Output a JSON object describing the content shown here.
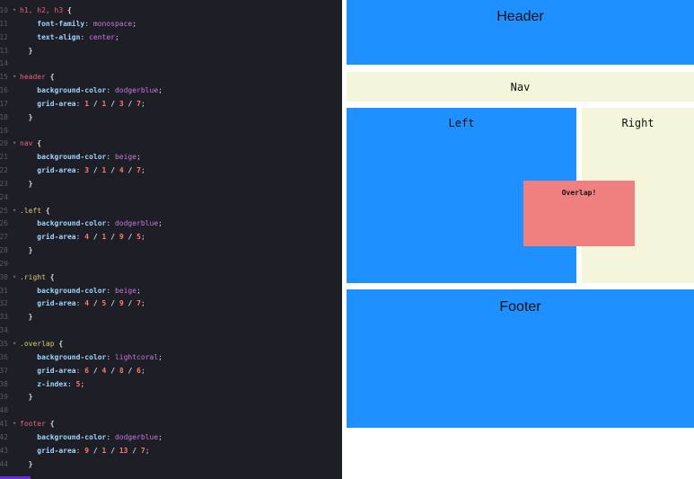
{
  "editor": {
    "lines": [
      {
        "n": "10",
        "fold": true,
        "tokens": [
          [
            "sel",
            "h1, h2, h3"
          ],
          [
            "plain",
            " "
          ],
          [
            "brace",
            "{"
          ]
        ]
      },
      {
        "n": "11",
        "tokens": [
          [
            "plain",
            "    "
          ],
          [
            "prop",
            "font-family"
          ],
          [
            "colon",
            ": "
          ],
          [
            "val",
            "monospace"
          ],
          [
            "semi",
            ";"
          ]
        ]
      },
      {
        "n": "12",
        "tokens": [
          [
            "plain",
            "    "
          ],
          [
            "prop",
            "text-align"
          ],
          [
            "colon",
            ": "
          ],
          [
            "val",
            "center"
          ],
          [
            "semi",
            ";"
          ]
        ]
      },
      {
        "n": "13",
        "tokens": [
          [
            "plain",
            "  "
          ],
          [
            "brace",
            "}"
          ]
        ]
      },
      {
        "n": "14",
        "tokens": []
      },
      {
        "n": "15",
        "fold": true,
        "tokens": [
          [
            "sel",
            "header"
          ],
          [
            "plain",
            " "
          ],
          [
            "brace",
            "{"
          ]
        ]
      },
      {
        "n": "16",
        "tokens": [
          [
            "plain",
            "    "
          ],
          [
            "prop",
            "background-color"
          ],
          [
            "colon",
            ": "
          ],
          [
            "val",
            "dodgerblue"
          ],
          [
            "semi",
            ";"
          ]
        ]
      },
      {
        "n": "17",
        "tokens": [
          [
            "plain",
            "    "
          ],
          [
            "prop",
            "grid-area"
          ],
          [
            "colon",
            ": "
          ],
          [
            "num",
            "1"
          ],
          [
            "slash",
            " / "
          ],
          [
            "num",
            "1"
          ],
          [
            "slash",
            " / "
          ],
          [
            "num",
            "3"
          ],
          [
            "slash",
            " / "
          ],
          [
            "num",
            "7"
          ],
          [
            "semi",
            ";"
          ]
        ]
      },
      {
        "n": "18",
        "tokens": [
          [
            "plain",
            "  "
          ],
          [
            "brace",
            "}"
          ]
        ]
      },
      {
        "n": "19",
        "tokens": []
      },
      {
        "n": "20",
        "fold": true,
        "tokens": [
          [
            "sel",
            "nav"
          ],
          [
            "plain",
            " "
          ],
          [
            "brace",
            "{"
          ]
        ]
      },
      {
        "n": "21",
        "tokens": [
          [
            "plain",
            "    "
          ],
          [
            "prop",
            "background-color"
          ],
          [
            "colon",
            ": "
          ],
          [
            "val",
            "beige"
          ],
          [
            "semi",
            ";"
          ]
        ]
      },
      {
        "n": "22",
        "tokens": [
          [
            "plain",
            "    "
          ],
          [
            "prop",
            "grid-area"
          ],
          [
            "colon",
            ": "
          ],
          [
            "num",
            "3"
          ],
          [
            "slash",
            " / "
          ],
          [
            "num",
            "1"
          ],
          [
            "slash",
            " / "
          ],
          [
            "num",
            "4"
          ],
          [
            "slash",
            " / "
          ],
          [
            "num",
            "7"
          ],
          [
            "semi",
            ";"
          ]
        ]
      },
      {
        "n": "23",
        "tokens": [
          [
            "plain",
            "  "
          ],
          [
            "brace",
            "}"
          ]
        ]
      },
      {
        "n": "24",
        "tokens": []
      },
      {
        "n": "25",
        "fold": true,
        "tokens": [
          [
            "cls",
            ".left"
          ],
          [
            "plain",
            " "
          ],
          [
            "brace",
            "{"
          ]
        ]
      },
      {
        "n": "26",
        "tokens": [
          [
            "plain",
            "    "
          ],
          [
            "prop",
            "background-color"
          ],
          [
            "colon",
            ": "
          ],
          [
            "val",
            "dodgerblue"
          ],
          [
            "semi",
            ";"
          ]
        ]
      },
      {
        "n": "27",
        "tokens": [
          [
            "plain",
            "    "
          ],
          [
            "prop",
            "grid-area"
          ],
          [
            "colon",
            ": "
          ],
          [
            "num",
            "4"
          ],
          [
            "slash",
            " / "
          ],
          [
            "num",
            "1"
          ],
          [
            "slash",
            " / "
          ],
          [
            "num",
            "9"
          ],
          [
            "slash",
            " / "
          ],
          [
            "num",
            "5"
          ],
          [
            "semi",
            ";"
          ]
        ]
      },
      {
        "n": "28",
        "tokens": [
          [
            "plain",
            "  "
          ],
          [
            "brace",
            "}"
          ]
        ]
      },
      {
        "n": "29",
        "tokens": []
      },
      {
        "n": "30",
        "fold": true,
        "tokens": [
          [
            "cls",
            ".right"
          ],
          [
            "plain",
            " "
          ],
          [
            "brace",
            "{"
          ]
        ]
      },
      {
        "n": "31",
        "tokens": [
          [
            "plain",
            "    "
          ],
          [
            "prop",
            "background-color"
          ],
          [
            "colon",
            ": "
          ],
          [
            "val",
            "beige"
          ],
          [
            "semi",
            ";"
          ]
        ]
      },
      {
        "n": "32",
        "tokens": [
          [
            "plain",
            "    "
          ],
          [
            "prop",
            "grid-area"
          ],
          [
            "colon",
            ": "
          ],
          [
            "num",
            "4"
          ],
          [
            "slash",
            " / "
          ],
          [
            "num",
            "5"
          ],
          [
            "slash",
            " / "
          ],
          [
            "num",
            "9"
          ],
          [
            "slash",
            " / "
          ],
          [
            "num",
            "7"
          ],
          [
            "semi",
            ";"
          ]
        ]
      },
      {
        "n": "33",
        "tokens": [
          [
            "plain",
            "  "
          ],
          [
            "brace",
            "}"
          ]
        ]
      },
      {
        "n": "34",
        "tokens": []
      },
      {
        "n": "35",
        "fold": true,
        "tokens": [
          [
            "cls",
            ".overlap"
          ],
          [
            "plain",
            " "
          ],
          [
            "brace",
            "{"
          ]
        ]
      },
      {
        "n": "36",
        "tokens": [
          [
            "plain",
            "    "
          ],
          [
            "prop",
            "background-color"
          ],
          [
            "colon",
            ": "
          ],
          [
            "val",
            "lightcoral"
          ],
          [
            "semi",
            ";"
          ]
        ]
      },
      {
        "n": "37",
        "tokens": [
          [
            "plain",
            "    "
          ],
          [
            "prop",
            "grid-area"
          ],
          [
            "colon",
            ": "
          ],
          [
            "num",
            "6"
          ],
          [
            "slash",
            " / "
          ],
          [
            "num",
            "4"
          ],
          [
            "slash",
            " / "
          ],
          [
            "num",
            "8"
          ],
          [
            "slash",
            " / "
          ],
          [
            "num",
            "6"
          ],
          [
            "semi",
            ";"
          ]
        ]
      },
      {
        "n": "38",
        "tokens": [
          [
            "plain",
            "    "
          ],
          [
            "prop",
            "z-index"
          ],
          [
            "colon",
            ": "
          ],
          [
            "num",
            "5"
          ],
          [
            "semi",
            ";"
          ]
        ]
      },
      {
        "n": "39",
        "tokens": [
          [
            "plain",
            "  "
          ],
          [
            "brace",
            "}"
          ]
        ]
      },
      {
        "n": "40",
        "tokens": []
      },
      {
        "n": "41",
        "fold": true,
        "tokens": [
          [
            "sel",
            "footer"
          ],
          [
            "plain",
            " "
          ],
          [
            "brace",
            "{"
          ]
        ]
      },
      {
        "n": "42",
        "tokens": [
          [
            "plain",
            "    "
          ],
          [
            "prop",
            "background-color"
          ],
          [
            "colon",
            ": "
          ],
          [
            "val",
            "dodgerblue"
          ],
          [
            "semi",
            ";"
          ]
        ]
      },
      {
        "n": "43",
        "tokens": [
          [
            "plain",
            "    "
          ],
          [
            "prop",
            "grid-area"
          ],
          [
            "colon",
            ": "
          ],
          [
            "num",
            "9"
          ],
          [
            "slash",
            " / "
          ],
          [
            "num",
            "1"
          ],
          [
            "slash",
            " / "
          ],
          [
            "num",
            "13"
          ],
          [
            "slash",
            " / "
          ],
          [
            "num",
            "7"
          ],
          [
            "semi",
            ";"
          ]
        ]
      },
      {
        "n": "44",
        "tokens": [
          [
            "plain",
            "  "
          ],
          [
            "brace",
            "}"
          ]
        ]
      }
    ]
  },
  "preview": {
    "header": "Header",
    "nav": "Nav",
    "left": "Left",
    "right": "Right",
    "overlap": "Overlap!",
    "footer": "Footer"
  },
  "colors": {
    "editor_bg": "#1e1e26",
    "dodgerblue": "#1e90ff",
    "beige": "#f5f5dc",
    "lightcoral": "#f08080"
  }
}
